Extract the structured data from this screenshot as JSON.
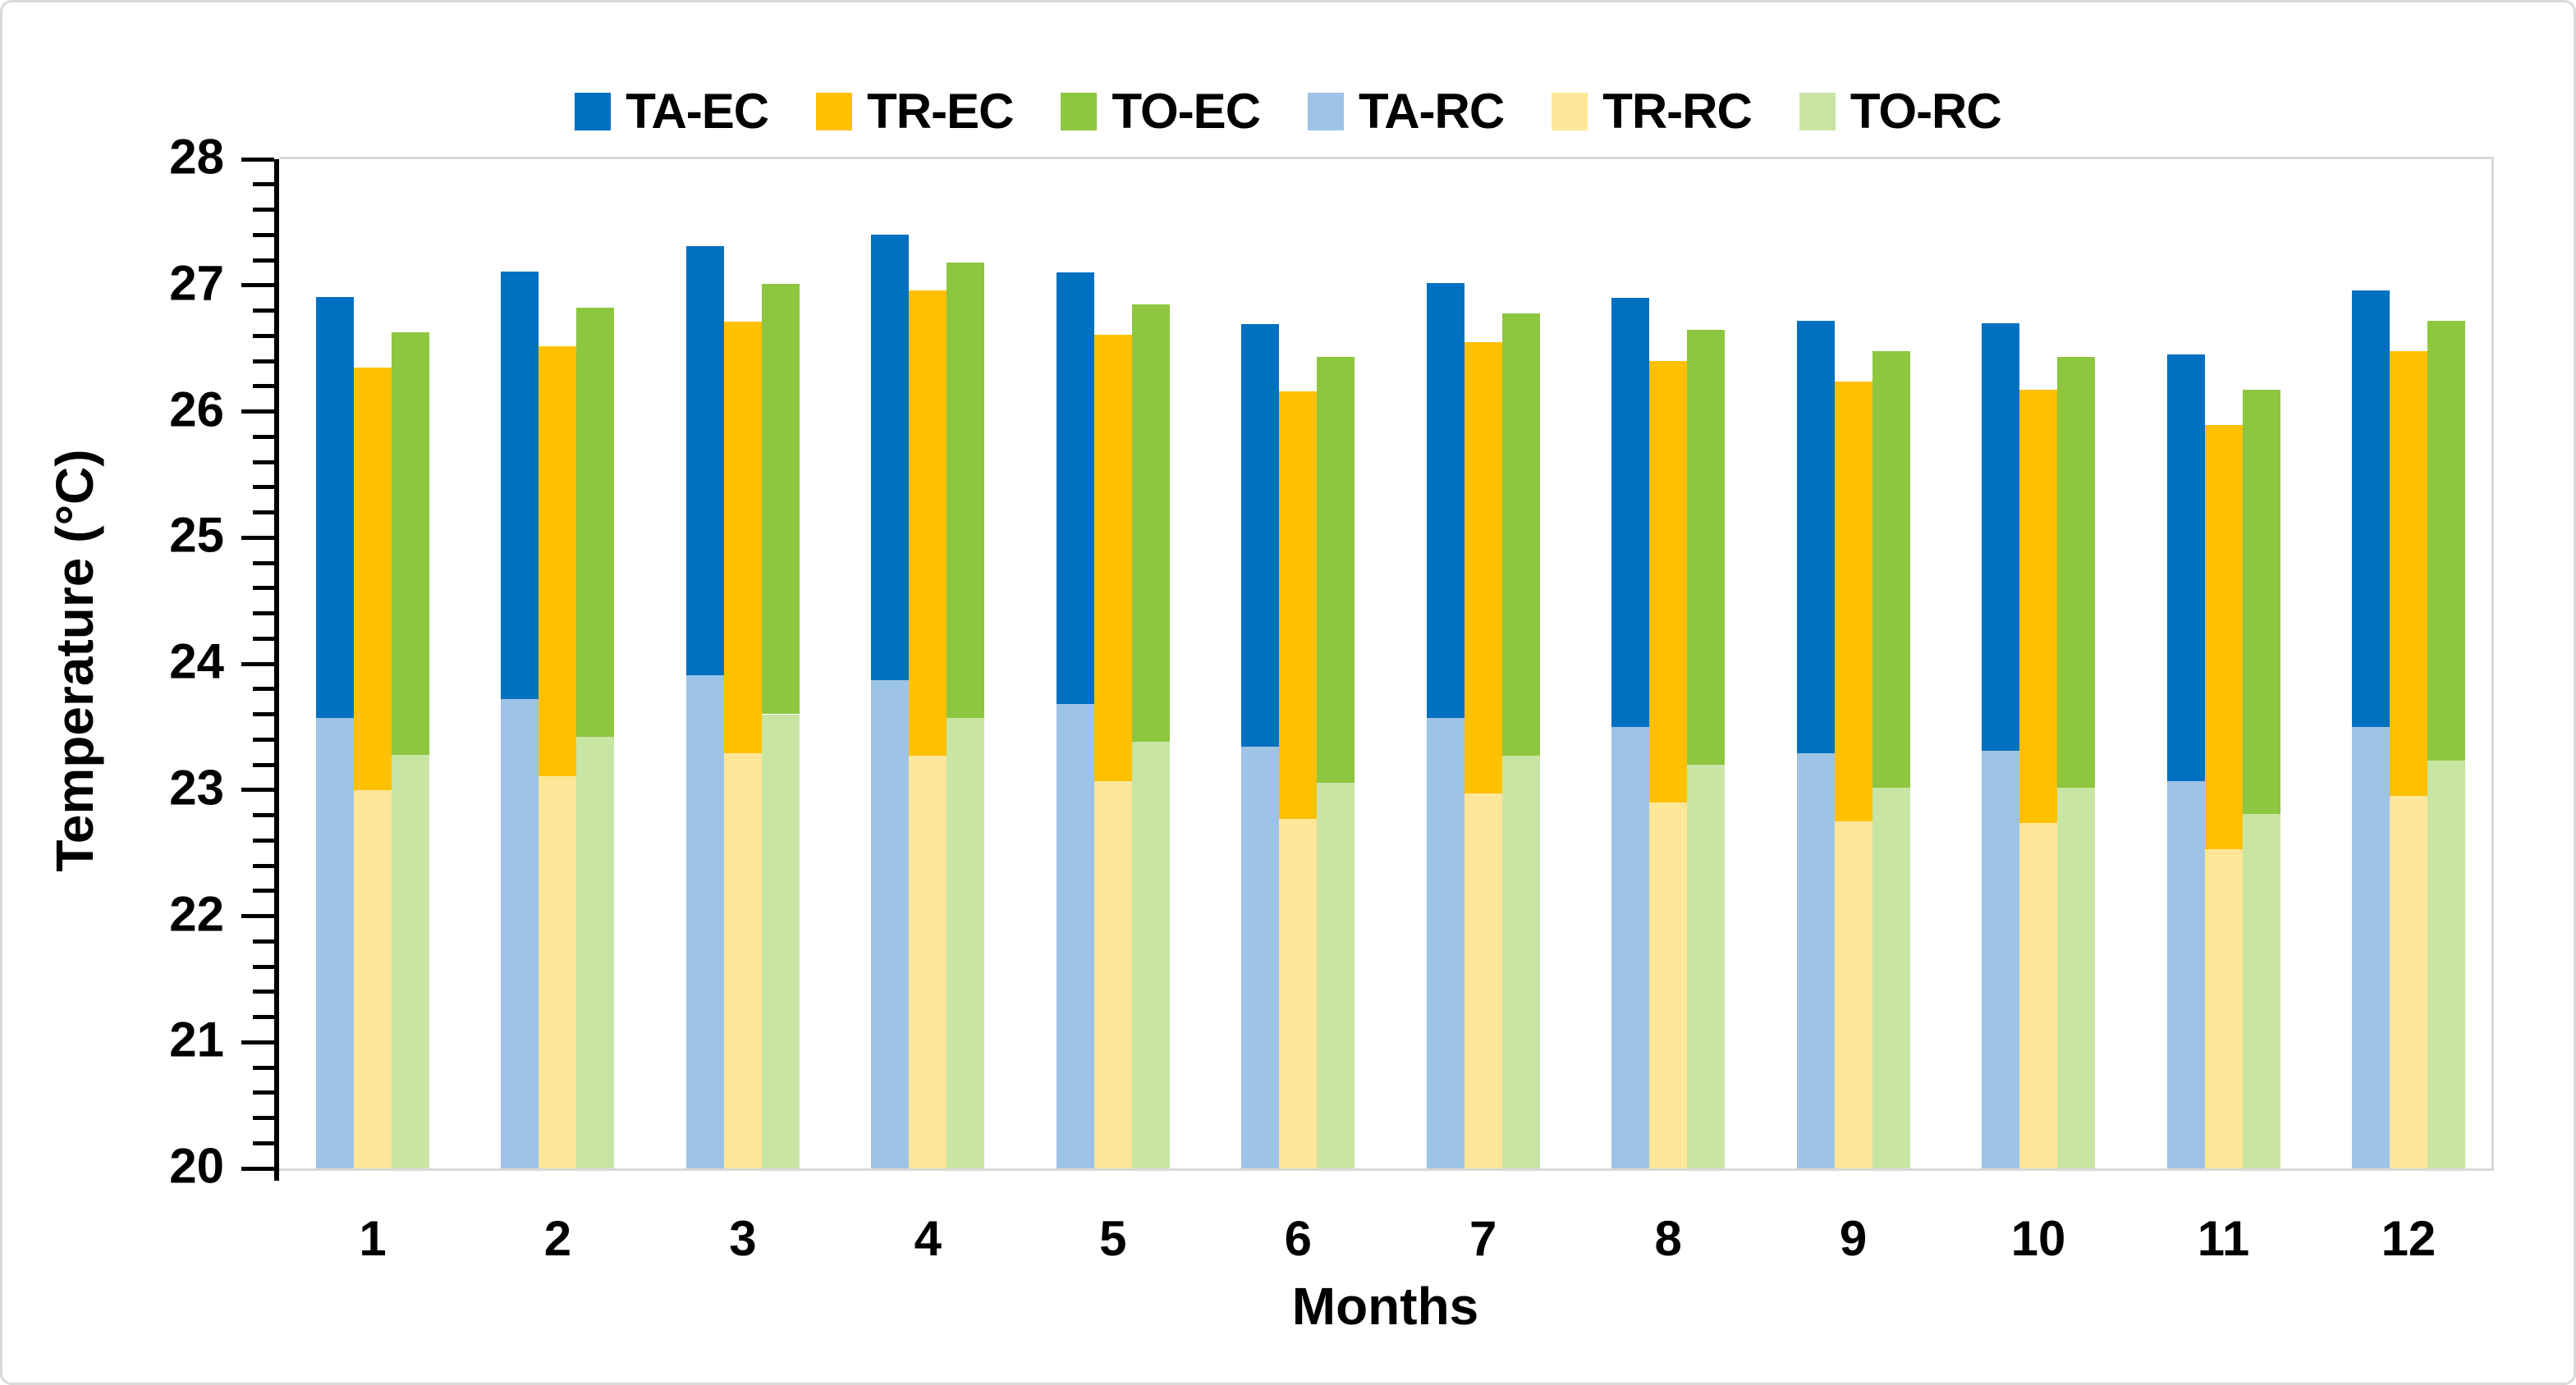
{
  "figure": {
    "y_axis_title": "Temperature (°C)",
    "x_axis_title": "Months"
  },
  "legend": [
    {
      "label": "TA-EC",
      "color": "#0070C0"
    },
    {
      "label": "TR-EC",
      "color": "#FFC000"
    },
    {
      "label": "TO-EC",
      "color": "#8DC63F"
    },
    {
      "label": "TA-RC",
      "color": "#9DC3E6"
    },
    {
      "label": "TR-RC",
      "color": "#FFE699"
    },
    {
      "label": "TO-RC",
      "color": "#C9E5A3"
    }
  ],
  "chart_data": {
    "type": "bar",
    "title": "",
    "xlabel": "Months",
    "ylabel": "Temperature (°C)",
    "ylim": [
      20,
      28
    ],
    "ytick_step": 1,
    "minor_tick_step": 0.2,
    "grid": false,
    "legend_position": "top",
    "categories": [
      "1",
      "2",
      "3",
      "4",
      "5",
      "6",
      "7",
      "8",
      "9",
      "10",
      "11",
      "12"
    ],
    "series": [
      {
        "name": "TA-EC",
        "color": "#0070C0",
        "values": [
          26.91,
          27.11,
          27.31,
          27.4,
          27.1,
          26.69,
          27.02,
          26.9,
          26.72,
          26.7,
          26.45,
          26.96
        ]
      },
      {
        "name": "TR-EC",
        "color": "#FFC000",
        "values": [
          26.35,
          26.52,
          26.71,
          26.96,
          26.61,
          26.16,
          26.55,
          26.4,
          26.24,
          26.17,
          25.89,
          26.48
        ]
      },
      {
        "name": "TO-EC",
        "color": "#8DC63F",
        "values": [
          26.63,
          26.82,
          27.01,
          27.18,
          26.85,
          26.43,
          26.78,
          26.65,
          26.48,
          26.43,
          26.17,
          26.72
        ]
      },
      {
        "name": "TA-RC",
        "color": "#9DC3E6",
        "values": [
          23.57,
          23.72,
          23.91,
          23.87,
          23.68,
          23.34,
          23.57,
          23.5,
          23.29,
          23.31,
          23.07,
          23.5
        ]
      },
      {
        "name": "TR-RC",
        "color": "#FFE699",
        "values": [
          23.0,
          23.11,
          23.29,
          23.27,
          23.07,
          22.77,
          22.97,
          22.9,
          22.75,
          22.74,
          22.53,
          22.95
        ]
      },
      {
        "name": "TO-RC",
        "color": "#C9E5A3",
        "values": [
          23.28,
          23.42,
          23.6,
          23.57,
          23.38,
          23.06,
          23.27,
          23.2,
          23.02,
          23.02,
          22.81,
          23.23
        ]
      }
    ],
    "pairs": [
      {
        "top_series": "TA-EC",
        "base_series": "TA-RC"
      },
      {
        "top_series": "TR-EC",
        "base_series": "TR-RC"
      },
      {
        "top_series": "TO-EC",
        "base_series": "TO-RC"
      }
    ]
  }
}
